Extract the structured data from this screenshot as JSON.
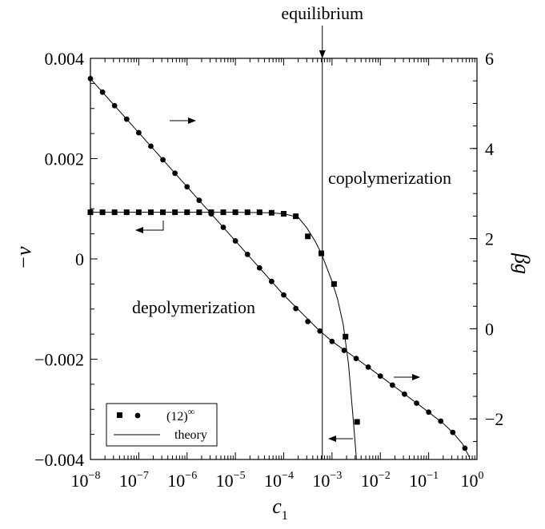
{
  "chart_data": {
    "type": "scatter",
    "title": "",
    "xlabel": "c",
    "xlabel_sub": "1",
    "x_scale": "log",
    "xlim": [
      1e-08,
      1
    ],
    "x_ticks": [
      {
        "value": 1e-08,
        "base": "10",
        "exp": "−8"
      },
      {
        "value": 1e-07,
        "base": "10",
        "exp": "−7"
      },
      {
        "value": 1e-06,
        "base": "10",
        "exp": "−6"
      },
      {
        "value": 1e-05,
        "base": "10",
        "exp": "−5"
      },
      {
        "value": 0.0001,
        "base": "10",
        "exp": "−4"
      },
      {
        "value": 0.001,
        "base": "10",
        "exp": "−3"
      },
      {
        "value": 0.01,
        "base": "10",
        "exp": "−2"
      },
      {
        "value": 0.1,
        "base": "10",
        "exp": "−1"
      },
      {
        "value": 1,
        "base": "10",
        "exp": "0"
      }
    ],
    "ylabel_left": "−v",
    "ylim_left": [
      -0.004,
      0.004
    ],
    "y_ticks_left": [
      {
        "value": 0.004,
        "label": "0.004"
      },
      {
        "value": 0.002,
        "label": "0.002"
      },
      {
        "value": 0,
        "label": "0"
      },
      {
        "value": -0.002,
        "label": "−0.002"
      },
      {
        "value": -0.004,
        "label": "−0.004"
      }
    ],
    "ylabel_right": "βg",
    "ylim_right": [
      -2.9,
      6
    ],
    "y_ticks_right": [
      {
        "value": 6,
        "label": "6"
      },
      {
        "value": 4,
        "label": "4"
      },
      {
        "value": 2,
        "label": "2"
      },
      {
        "value": 0,
        "label": "0"
      },
      {
        "value": -2,
        "label": "−2"
      }
    ],
    "series": [
      {
        "name": "−v",
        "axis": "left",
        "marker": "square",
        "x": [
          1e-08,
          1.78e-08,
          3.16e-08,
          5.62e-08,
          1e-07,
          1.78e-07,
          3.16e-07,
          5.62e-07,
          1e-06,
          1.78e-06,
          3.16e-06,
          5.62e-06,
          1e-05,
          1.78e-05,
          3.16e-05,
          5.62e-05,
          0.0001,
          0.000178,
          0.000316,
          0.0006,
          0.0011,
          0.0019,
          0.0033
        ],
        "values": [
          0.00093,
          0.00093,
          0.00093,
          0.00093,
          0.00093,
          0.00093,
          0.00093,
          0.00093,
          0.00093,
          0.00093,
          0.00093,
          0.00093,
          0.00093,
          0.00093,
          0.00093,
          0.00092,
          0.0009,
          0.00085,
          0.00045,
          0.00011,
          -0.0005,
          -0.00155,
          -0.00325
        ]
      },
      {
        "name": "βg",
        "axis": "right",
        "marker": "circle",
        "x": [
          1e-08,
          1.78e-08,
          3.16e-08,
          5.62e-08,
          1e-07,
          1.78e-07,
          3.16e-07,
          5.62e-07,
          1e-06,
          1.78e-06,
          3.16e-06,
          5.62e-06,
          1e-05,
          1.78e-05,
          3.16e-05,
          5.62e-05,
          0.0001,
          0.000178,
          0.000316,
          0.000562,
          0.001,
          0.00178,
          0.00316,
          0.00562,
          0.01,
          0.0178,
          0.0316,
          0.0562,
          0.1,
          0.178,
          0.316,
          0.562
        ],
        "values": [
          5.55,
          5.25,
          4.95,
          4.65,
          4.35,
          4.05,
          3.75,
          3.45,
          3.15,
          2.85,
          2.55,
          2.25,
          1.95,
          1.65,
          1.35,
          1.05,
          0.75,
          0.45,
          0.16,
          -0.05,
          -0.28,
          -0.48,
          -0.66,
          -0.85,
          -1.05,
          -1.25,
          -1.45,
          -1.65,
          -1.85,
          -2.05,
          -2.3,
          -2.65
        ]
      }
    ],
    "theory_v": {
      "x": [
        1e-08,
        1e-06,
        1e-05,
        5e-05,
        0.0001,
        0.0002,
        0.0003,
        0.00045,
        0.0006,
        0.0008,
        0.001,
        0.0013,
        0.0017,
        0.0022,
        0.0028,
        0.0032
      ],
      "values": [
        0.00093,
        0.00093,
        0.00093,
        0.00092,
        0.0009,
        0.00083,
        0.00062,
        0.00035,
        0.00011,
        -0.0002,
        -0.00045,
        -0.0008,
        -0.0013,
        -0.0021,
        -0.0033,
        -0.004
      ]
    },
    "theory_beta": {
      "x": [
        1e-08,
        1e-07,
        1e-06,
        1e-05,
        0.0001,
        0.0005,
        0.001,
        0.003,
        0.01,
        0.03,
        0.1,
        0.2,
        0.316,
        0.5,
        0.7
      ],
      "values": [
        5.55,
        4.35,
        3.15,
        1.95,
        0.75,
        0.0,
        -0.28,
        -0.64,
        -1.05,
        -1.43,
        -1.85,
        -2.1,
        -2.3,
        -2.55,
        -2.85
      ]
    },
    "equilibrium_x": 0.00063,
    "annotations": {
      "equilibrium": "equilibrium",
      "copolymerization": "copolymerization",
      "depolymerization": "depolymerization"
    },
    "legend": {
      "placement": "bottom-left",
      "entries": [
        {
          "label_base": "(12)",
          "label_sup": "∞",
          "marker": "square+circle"
        },
        {
          "label": "theory",
          "marker": "line"
        }
      ]
    },
    "grid": false
  }
}
